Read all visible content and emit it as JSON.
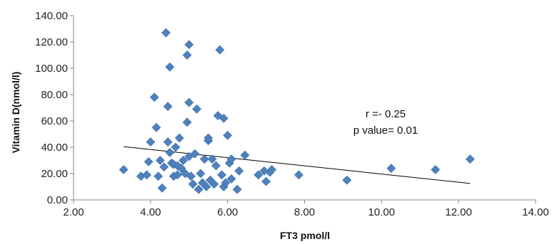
{
  "chart_data": {
    "type": "scatter",
    "xlabel": "FT3 pmol/l",
    "ylabel": "Vitamin D(nmol/l)",
    "xlim": [
      2,
      14
    ],
    "ylim": [
      0,
      140
    ],
    "x_ticks": [
      2,
      4,
      6,
      8,
      10,
      12,
      14
    ],
    "y_ticks": [
      0,
      20,
      40,
      60,
      80,
      100,
      120,
      140
    ],
    "x_tick_labels": [
      "2.00",
      "4.00",
      "6.00",
      "8.00",
      "10.00",
      "12.00",
      "14.00"
    ],
    "y_tick_labels": [
      "0.00",
      "20.00",
      "40.00",
      "60.00",
      "80.00",
      "100.00",
      "120.00",
      "140.00"
    ],
    "grid": false,
    "legend": "none",
    "marker_color": "#4F81BD",
    "marker": "diamond",
    "trendline": {
      "x": [
        3.3,
        12.3
      ],
      "y": [
        40.5,
        12.5
      ],
      "color": "#000000"
    },
    "annotations": [
      "r =- 0.25",
      "p value= 0.01"
    ],
    "points": [
      [
        3.3,
        23
      ],
      [
        3.75,
        18
      ],
      [
        3.9,
        19
      ],
      [
        3.95,
        29
      ],
      [
        4.0,
        44
      ],
      [
        4.1,
        78
      ],
      [
        4.15,
        55
      ],
      [
        4.2,
        18
      ],
      [
        4.25,
        30
      ],
      [
        4.3,
        9
      ],
      [
        4.35,
        25
      ],
      [
        4.4,
        127
      ],
      [
        4.45,
        71
      ],
      [
        4.45,
        44
      ],
      [
        4.5,
        36
      ],
      [
        4.5,
        101
      ],
      [
        4.55,
        28
      ],
      [
        4.6,
        18
      ],
      [
        4.6,
        27
      ],
      [
        4.65,
        40
      ],
      [
        4.7,
        19
      ],
      [
        4.7,
        26
      ],
      [
        4.75,
        47
      ],
      [
        4.8,
        24
      ],
      [
        4.85,
        30
      ],
      [
        4.9,
        20
      ],
      [
        4.95,
        110
      ],
      [
        4.95,
        59
      ],
      [
        5.0,
        74
      ],
      [
        5.0,
        118
      ],
      [
        5.0,
        33
      ],
      [
        5.05,
        18
      ],
      [
        5.1,
        12
      ],
      [
        5.15,
        35
      ],
      [
        5.2,
        69
      ],
      [
        5.25,
        8
      ],
      [
        5.3,
        20
      ],
      [
        5.35,
        13
      ],
      [
        5.4,
        31
      ],
      [
        5.45,
        10
      ],
      [
        5.5,
        45
      ],
      [
        5.5,
        47
      ],
      [
        5.55,
        15
      ],
      [
        5.6,
        31
      ],
      [
        5.65,
        12
      ],
      [
        5.7,
        26
      ],
      [
        5.75,
        64
      ],
      [
        5.8,
        114
      ],
      [
        5.85,
        19
      ],
      [
        5.9,
        62
      ],
      [
        5.9,
        10
      ],
      [
        5.95,
        13
      ],
      [
        6.0,
        49
      ],
      [
        6.05,
        28
      ],
      [
        6.1,
        31
      ],
      [
        6.1,
        16
      ],
      [
        6.25,
        8
      ],
      [
        6.3,
        22
      ],
      [
        6.45,
        34
      ],
      [
        6.8,
        19
      ],
      [
        6.95,
        22
      ],
      [
        7.0,
        14
      ],
      [
        7.1,
        21
      ],
      [
        7.15,
        23
      ],
      [
        7.85,
        19
      ],
      [
        9.1,
        15
      ],
      [
        10.25,
        24
      ],
      [
        11.4,
        23
      ],
      [
        12.3,
        31
      ]
    ]
  }
}
